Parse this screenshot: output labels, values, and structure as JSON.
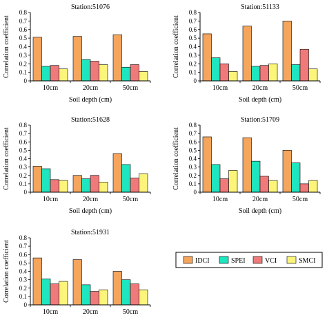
{
  "colors": {
    "IDCI": "#f5a55c",
    "SPEI": "#1de6c0",
    "VCI": "#f07a7a",
    "SMCI": "#fcf57a",
    "axis": "#000000"
  },
  "legend": {
    "placement": "right-bottom",
    "entries": [
      "IDCI",
      "SPEI",
      "VCI",
      "SMCI"
    ]
  },
  "chart_data": [
    {
      "type": "bar",
      "title": "Station:51076",
      "xlabel": "Soil depth (cm)",
      "ylabel": "Correlation coefficient",
      "ylim": [
        0,
        0.8
      ],
      "yticks": [
        "0",
        "0.1",
        "0.2",
        "0.3",
        "0.4",
        "0.5",
        "0.6",
        "0.7",
        "0.8"
      ],
      "categories": [
        "10cm",
        "20cm",
        "50cm"
      ],
      "series": [
        {
          "name": "IDCI",
          "values": [
            0.51,
            0.52,
            0.54
          ]
        },
        {
          "name": "SPEI",
          "values": [
            0.17,
            0.25,
            0.16
          ]
        },
        {
          "name": "VCI",
          "values": [
            0.18,
            0.23,
            0.19
          ]
        },
        {
          "name": "SMCI",
          "values": [
            0.14,
            0.19,
            0.11
          ]
        }
      ]
    },
    {
      "type": "bar",
      "title": "Station:51133",
      "xlabel": "Soil depth (cm)",
      "ylabel": "Correlation coefficient",
      "ylim": [
        0,
        0.8
      ],
      "yticks": [
        "0",
        "0.1",
        "0.2",
        "0.3",
        "0.4",
        "0.5",
        "0.6",
        "0.7",
        "0.8"
      ],
      "categories": [
        "10cm",
        "20cm",
        "50cm"
      ],
      "series": [
        {
          "name": "IDCI",
          "values": [
            0.55,
            0.64,
            0.7
          ]
        },
        {
          "name": "SPEI",
          "values": [
            0.27,
            0.17,
            0.19
          ]
        },
        {
          "name": "VCI",
          "values": [
            0.2,
            0.18,
            0.37
          ]
        },
        {
          "name": "SMCI",
          "values": [
            0.11,
            0.2,
            0.14
          ]
        }
      ]
    },
    {
      "type": "bar",
      "title": "Station:51628",
      "xlabel": "Soil depth (cm)",
      "ylabel": "Correlation coefficient",
      "ylim": [
        0,
        0.8
      ],
      "yticks": [
        "0",
        "0.1",
        "0.2",
        "0.3",
        "0.4",
        "0.5",
        "0.6",
        "0.7",
        "0.8"
      ],
      "categories": [
        "10cm",
        "20cm",
        "50cm"
      ],
      "series": [
        {
          "name": "IDCI",
          "values": [
            0.31,
            0.2,
            0.46
          ]
        },
        {
          "name": "SPEI",
          "values": [
            0.28,
            0.16,
            0.33
          ]
        },
        {
          "name": "VCI",
          "values": [
            0.15,
            0.2,
            0.17
          ]
        },
        {
          "name": "SMCI",
          "values": [
            0.14,
            0.12,
            0.22
          ]
        }
      ]
    },
    {
      "type": "bar",
      "title": "Station:51709",
      "xlabel": "Soil depth (cm)",
      "ylabel": "Correlation coefficient",
      "ylim": [
        0,
        0.8
      ],
      "yticks": [
        "0",
        "0.1",
        "0.2",
        "0.3",
        "0.4",
        "0.5",
        "0.6",
        "0.7",
        "0.8"
      ],
      "categories": [
        "10cm",
        "20cm",
        "50cm"
      ],
      "series": [
        {
          "name": "IDCI",
          "values": [
            0.66,
            0.65,
            0.5
          ]
        },
        {
          "name": "SPEI",
          "values": [
            0.33,
            0.37,
            0.35
          ]
        },
        {
          "name": "VCI",
          "values": [
            0.16,
            0.19,
            0.1
          ]
        },
        {
          "name": "SMCI",
          "values": [
            0.26,
            0.14,
            0.14
          ]
        }
      ]
    },
    {
      "type": "bar",
      "title": "Station:51931",
      "xlabel": "Soil depth (cm)",
      "ylabel": "Correlation coefficient",
      "ylim": [
        0,
        0.8
      ],
      "yticks": [
        "0",
        "0.1",
        "0.2",
        "0.3",
        "0.4",
        "0.5",
        "0.6",
        "0.7",
        "0.8"
      ],
      "categories": [
        "10cm",
        "20cm",
        "50cm"
      ],
      "series": [
        {
          "name": "IDCI",
          "values": [
            0.56,
            0.54,
            0.4
          ]
        },
        {
          "name": "SPEI",
          "values": [
            0.31,
            0.24,
            0.3
          ]
        },
        {
          "name": "VCI",
          "values": [
            0.25,
            0.16,
            0.25
          ]
        },
        {
          "name": "SMCI",
          "values": [
            0.28,
            0.18,
            0.18
          ]
        }
      ]
    }
  ]
}
